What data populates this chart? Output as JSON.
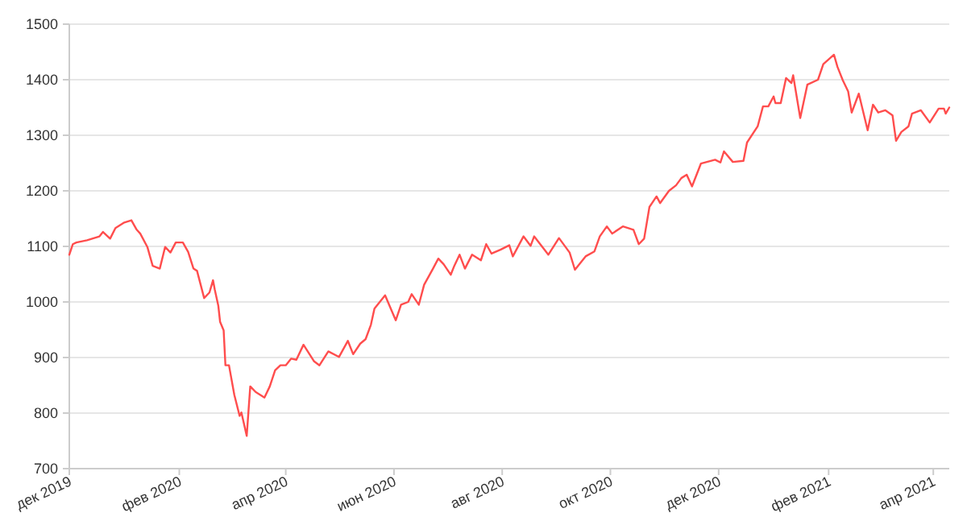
{
  "chart_data": {
    "type": "line",
    "grid": "y",
    "marker": "none",
    "line_style": "solid",
    "xlim": [
      "2019-12-01",
      "2021-04-10"
    ],
    "xticks": [
      {
        "value": "2019-12-01",
        "label": "дек 2019"
      },
      {
        "value": "2020-02-01",
        "label": "фев 2020"
      },
      {
        "value": "2020-04-01",
        "label": "апр 2020"
      },
      {
        "value": "2020-06-01",
        "label": "июн 2020"
      },
      {
        "value": "2020-08-01",
        "label": "авг 2020"
      },
      {
        "value": "2020-10-01",
        "label": "окт 2020"
      },
      {
        "value": "2020-12-01",
        "label": "дек 2020"
      },
      {
        "value": "2021-02-01",
        "label": "фев 2021"
      },
      {
        "value": "2021-04-01",
        "label": "апр 2021"
      }
    ],
    "ylim": [
      700,
      1500
    ],
    "yticks": [
      700,
      800,
      900,
      1000,
      1100,
      1200,
      1300,
      1400,
      1500
    ],
    "x": [
      "2019-12-01",
      "2019-12-03",
      "2019-12-05",
      "2019-12-11",
      "2019-12-18",
      "2019-12-20",
      "2019-12-24",
      "2019-12-27",
      "2020-01-01",
      "2020-01-05",
      "2020-01-08",
      "2020-01-10",
      "2020-01-14",
      "2020-01-17",
      "2020-01-21",
      "2020-01-24",
      "2020-01-27",
      "2020-01-30",
      "2020-02-03",
      "2020-02-06",
      "2020-02-09",
      "2020-02-11",
      "2020-02-15",
      "2020-02-18",
      "2020-02-20",
      "2020-02-21",
      "2020-02-23",
      "2020-02-24",
      "2020-02-26",
      "2020-02-27",
      "2020-02-29",
      "2020-03-03",
      "2020-03-06",
      "2020-03-07",
      "2020-03-10",
      "2020-03-12",
      "2020-03-15",
      "2020-03-20",
      "2020-03-23",
      "2020-03-26",
      "2020-03-29",
      "2020-04-01",
      "2020-04-04",
      "2020-04-07",
      "2020-04-11",
      "2020-04-17",
      "2020-04-20",
      "2020-04-25",
      "2020-05-01",
      "2020-05-06",
      "2020-05-09",
      "2020-05-13",
      "2020-05-16",
      "2020-05-19",
      "2020-05-21",
      "2020-05-27",
      "2020-06-02",
      "2020-06-05",
      "2020-06-09",
      "2020-06-11",
      "2020-06-15",
      "2020-06-18",
      "2020-06-23",
      "2020-06-26",
      "2020-06-29",
      "2020-07-03",
      "2020-07-05",
      "2020-07-08",
      "2020-07-11",
      "2020-07-15",
      "2020-07-20",
      "2020-07-23",
      "2020-07-26",
      "2020-07-31",
      "2020-08-05",
      "2020-08-07",
      "2020-08-13",
      "2020-08-17",
      "2020-08-19",
      "2020-08-27",
      "2020-09-02",
      "2020-09-08",
      "2020-09-11",
      "2020-09-17",
      "2020-09-22",
      "2020-09-25",
      "2020-09-29",
      "2020-10-02",
      "2020-10-08",
      "2020-10-14",
      "2020-10-17",
      "2020-10-20",
      "2020-10-23",
      "2020-10-27",
      "2020-10-29",
      "2020-11-03",
      "2020-11-07",
      "2020-11-10",
      "2020-11-13",
      "2020-11-16",
      "2020-11-21",
      "2020-11-29",
      "2020-12-02",
      "2020-12-04",
      "2020-12-09",
      "2020-12-15",
      "2020-12-17",
      "2020-12-23",
      "2020-12-26",
      "2020-12-29",
      "2021-01-01",
      "2021-01-02",
      "2021-01-05",
      "2021-01-08",
      "2021-01-11",
      "2021-01-12",
      "2021-01-16",
      "2021-01-20",
      "2021-01-26",
      "2021-01-29",
      "2021-02-04",
      "2021-02-06",
      "2021-02-09",
      "2021-02-12",
      "2021-02-14",
      "2021-02-18",
      "2021-02-23",
      "2021-02-26",
      "2021-03-01",
      "2021-03-05",
      "2021-03-09",
      "2021-03-11",
      "2021-03-14",
      "2021-03-18",
      "2021-03-20",
      "2021-03-25",
      "2021-03-30",
      "2021-04-04",
      "2021-04-07",
      "2021-04-08",
      "2021-04-10"
    ],
    "series": [
      {
        "color": "#ff4d4d",
        "values": [
          1085,
          1104,
          1107,
          1111,
          1118,
          1126,
          1114,
          1133,
          1143,
          1147,
          1130,
          1123,
          1099,
          1065,
          1060,
          1099,
          1089,
          1107,
          1107,
          1090,
          1060,
          1056,
          1007,
          1017,
          1039,
          1022,
          993,
          964,
          949,
          886,
          886,
          833,
          795,
          801,
          759,
          848,
          838,
          828,
          848,
          877,
          886,
          886,
          898,
          896,
          923,
          893,
          886,
          911,
          901,
          930,
          906,
          925,
          933,
          959,
          988,
          1012,
          967,
          995,
          1000,
          1014,
          995,
          1031,
          1060,
          1078,
          1068,
          1049,
          1065,
          1085,
          1060,
          1085,
          1075,
          1104,
          1087,
          1094,
          1102,
          1082,
          1118,
          1101,
          1118,
          1085,
          1115,
          1089,
          1058,
          1082,
          1091,
          1118,
          1136,
          1123,
          1136,
          1130,
          1104,
          1114,
          1171,
          1190,
          1178,
          1200,
          1210,
          1223,
          1229,
          1208,
          1249,
          1256,
          1251,
          1271,
          1252,
          1254,
          1287,
          1316,
          1352,
          1352,
          1370,
          1358,
          1358,
          1403,
          1394,
          1408,
          1331,
          1391,
          1400,
          1428,
          1445,
          1423,
          1399,
          1379,
          1341,
          1375,
          1309,
          1355,
          1341,
          1345,
          1336,
          1290,
          1306,
          1316,
          1339,
          1345,
          1323,
          1348,
          1348,
          1339,
          1350
        ]
      }
    ]
  }
}
